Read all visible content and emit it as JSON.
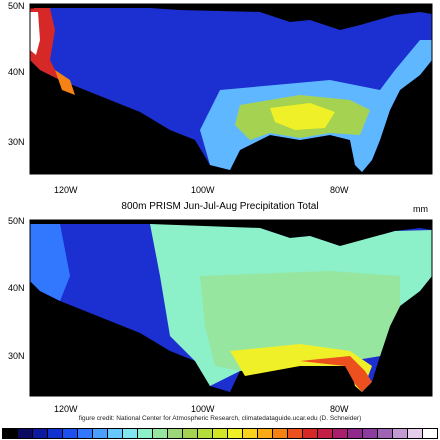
{
  "top_panel": {
    "lat_labels": [
      "50N",
      "40N",
      "30N"
    ],
    "lon_labels": [
      "120W",
      "100W",
      "80W"
    ]
  },
  "bottom_panel": {
    "lat_labels": [
      "50N",
      "40N",
      "30N"
    ],
    "lon_labels": [
      "120W",
      "100W",
      "80W"
    ]
  },
  "title": "800m PRISM Jun-Jul-Aug Precipitation Total",
  "units": "mm",
  "credit": "figure credit: National Center for Atmospheric Research, climatedataguide.ucar.edu (D. Schneider)",
  "colorbar": {
    "colors": [
      "#000000",
      "#0a0a60",
      "#0d1aa0",
      "#1032d0",
      "#1e50f0",
      "#3278ff",
      "#4ba0ff",
      "#66c8ff",
      "#82e6f0",
      "#8cf0c8",
      "#96e6a0",
      "#9bd778",
      "#a5d250",
      "#b4dc3c",
      "#d2e628",
      "#f0f028",
      "#fad21e",
      "#faaa14",
      "#f58214",
      "#eb501e",
      "#d72828",
      "#c31e46",
      "#aa1e6e",
      "#91288c",
      "#8c3ca0",
      "#a064b4",
      "#c39bd2",
      "#e6cdeb",
      "#ffffff"
    ]
  }
}
